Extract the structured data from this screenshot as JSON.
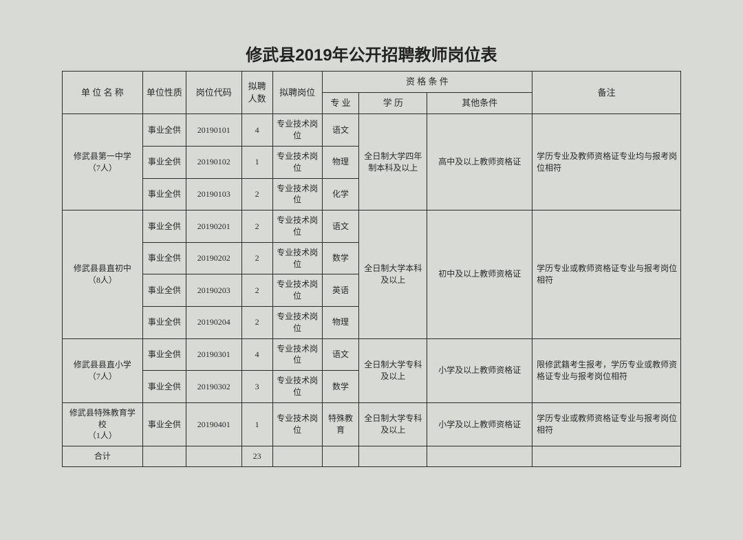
{
  "title": "修武县2019年公开招聘教师岗位表",
  "background_color": "#d8dad6",
  "border_color": "#2a2a2a",
  "text_color": "#2a2a2a",
  "headers": {
    "unit_name": "单 位 名 称",
    "nature": "单位性质",
    "code": "岗位代码",
    "count": "拟聘人数",
    "position": "拟聘岗位",
    "qualification": "资 格 条 件",
    "major": "专 业",
    "education": "学 历",
    "other": "其他条件",
    "remark": "备注"
  },
  "groups": [
    {
      "unit_name": "修武县第一中学\n（7人）",
      "education": "全日制大学四年制本科及以上",
      "other": "高中及以上教师资格证",
      "remark": "学历专业及教师资格证专业均与报考岗位相符",
      "rows": [
        {
          "nature": "事业全供",
          "code": "20190101",
          "count": "4",
          "position": "专业技术岗位",
          "major": "语文"
        },
        {
          "nature": "事业全供",
          "code": "20190102",
          "count": "1",
          "position": "专业技术岗位",
          "major": "物理"
        },
        {
          "nature": "事业全供",
          "code": "20190103",
          "count": "2",
          "position": "专业技术岗位",
          "major": "化学"
        }
      ]
    },
    {
      "unit_name": "修武县县直初中\n（8人）",
      "education": "全日制大学本科及以上",
      "other": "初中及以上教师资格证",
      "remark": "学历专业或教师资格证专业与报考岗位相符",
      "rows": [
        {
          "nature": "事业全供",
          "code": "20190201",
          "count": "2",
          "position": "专业技术岗位",
          "major": "语文"
        },
        {
          "nature": "事业全供",
          "code": "20190202",
          "count": "2",
          "position": "专业技术岗位",
          "major": "数学"
        },
        {
          "nature": "事业全供",
          "code": "20190203",
          "count": "2",
          "position": "专业技术岗位",
          "major": "英语"
        },
        {
          "nature": "事业全供",
          "code": "20190204",
          "count": "2",
          "position": "专业技术岗位",
          "major": "物理"
        }
      ]
    },
    {
      "unit_name": "修武县县直小学\n（7人）",
      "education": "全日制大学专科及以上",
      "other": "小学及以上教师资格证",
      "remark": "限修武籍考生报考，学历专业或教师资格证专业与报考岗位相符",
      "rows": [
        {
          "nature": "事业全供",
          "code": "20190301",
          "count": "4",
          "position": "专业技术岗位",
          "major": "语文"
        },
        {
          "nature": "事业全供",
          "code": "20190302",
          "count": "3",
          "position": "专业技术岗位",
          "major": "数学"
        }
      ]
    },
    {
      "unit_name": "修武县特殊教育学校\n（1人）",
      "education": "全日制大学专科及以上",
      "other": "小学及以上教师资格证",
      "remark": "学历专业或教师资格证专业与报考岗位相符",
      "rows": [
        {
          "nature": "事业全供",
          "code": "20190401",
          "count": "1",
          "position": "专业技术岗位",
          "major": "特殊教育"
        }
      ]
    }
  ],
  "total_row": {
    "label": "合计",
    "count": "23"
  }
}
